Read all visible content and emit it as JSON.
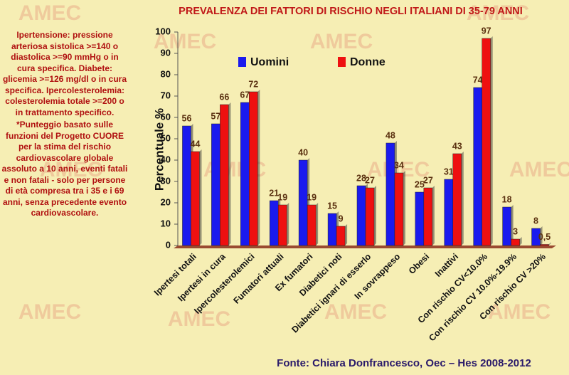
{
  "chart_data": {
    "type": "bar",
    "title": "PREVALENZA DEI FATTORI DI RISCHIO NEGLI ITALIANI DI 35-79 ANNI",
    "watermark": "AMEC",
    "note": "Ipertensione: pressione arteriosa sistolica >=140 o diastolica >=90 mmHg o in cura specifica. Diabete: glicemia >=126 mg/dl o in cura specifica. Ipercolesterolemia: colesterolemia totale >=200 o in trattamento specifico.",
    "footnote": "*Punteggio basato sulle funzioni del Progetto CUORE per la stima del rischio cardiovascolare globale assoluto a 10 anni, eventi fatali e non fatali - solo per persone di età compresa tra i 35 e i 69 anni, senza precedente evento cardiovascolare.",
    "source": "Fonte: Chiara Donfrancesco, Oec – Hes 2008-2012",
    "y_label": "Percentuale %",
    "categories": [
      "Ipertesi totali",
      "Ipertesi in cura",
      "Ipercolesterolemici",
      "Fumatori attuali",
      "Ex fumatori",
      "Diabetici noti",
      "Diabetici ignari di esserlo",
      "In sovrappeso",
      "Obesi",
      "Inattivi",
      "Con rischio CV<10.0%",
      "Con rischio CV 10.0%-19.9%",
      "Con rischio CV >20%"
    ],
    "series": [
      {
        "name": "Uomini",
        "color": "#1a1aee",
        "values": [
          56,
          57,
          67,
          21,
          40,
          15,
          28,
          48,
          25,
          31,
          74,
          18,
          8
        ]
      },
      {
        "name": "Donne",
        "color": "#ee1010",
        "values": [
          44,
          66,
          72,
          19,
          19,
          9,
          27,
          34,
          27,
          43,
          97,
          3,
          0.5
        ],
        "value_labels": [
          "44",
          "66",
          "72",
          "19",
          "19",
          "9",
          "27",
          "34",
          "27",
          "43",
          "97",
          "3",
          "0,5"
        ]
      }
    ],
    "ylim": [
      0,
      100
    ],
    "yticks": [
      0,
      10,
      20,
      30,
      40,
      50,
      60,
      70,
      80,
      90,
      100
    ],
    "grid": false
  }
}
